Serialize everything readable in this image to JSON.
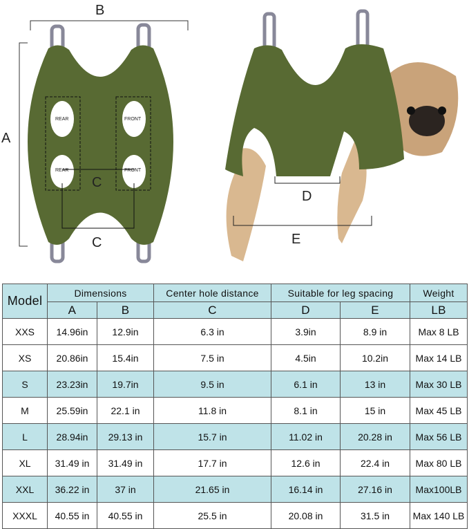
{
  "diagram": {
    "labels": {
      "A": "A",
      "B": "B",
      "C_inner": "C",
      "C_outer": "C",
      "D": "D",
      "E": "E"
    },
    "holes": [
      "REAR",
      "FRONT",
      "REAR",
      "FRONT"
    ],
    "colors": {
      "hammock": "#586a33",
      "dog": "#d9b890",
      "table_header": "#bfe3e8"
    }
  },
  "table": {
    "header": {
      "model": "Model",
      "dimensions": "Dimensions",
      "center": "Center hole distance",
      "leg": "Suitable for leg spacing",
      "weight": "Weight",
      "sub": [
        "A",
        "B",
        "C",
        "D",
        "E",
        "LB"
      ]
    },
    "rows": [
      {
        "model": "XXS",
        "a": "14.96in",
        "b": "12.9in",
        "c": "6.3 in",
        "d": "3.9in",
        "e": "8.9 in",
        "w": "Max 8 LB",
        "highlight": false
      },
      {
        "model": "XS",
        "a": "20.86in",
        "b": "15.4in",
        "c": "7.5 in",
        "d": "4.5in",
        "e": "10.2in",
        "w": "Max 14 LB",
        "highlight": false
      },
      {
        "model": "S",
        "a": "23.23in",
        "b": "19.7in",
        "c": "9.5 in",
        "d": "6.1 in",
        "e": "13 in",
        "w": "Max 30 LB",
        "highlight": true
      },
      {
        "model": "M",
        "a": "25.59in",
        "b": "22.1 in",
        "c": "11.8 in",
        "d": "8.1 in",
        "e": "15 in",
        "w": "Max 45 LB",
        "highlight": false
      },
      {
        "model": "L",
        "a": "28.94in",
        "b": "29.13 in",
        "c": "15.7 in",
        "d": "11.02 in",
        "e": "20.28 in",
        "w": "Max 56 LB",
        "highlight": true
      },
      {
        "model": "XL",
        "a": "31.49 in",
        "b": "31.49 in",
        "c": "17.7 in",
        "d": "12.6 in",
        "e": "22.4 in",
        "w": "Max 80 LB",
        "highlight": false
      },
      {
        "model": "XXL",
        "a": "36.22 in",
        "b": "37 in",
        "c": "21.65 in",
        "d": "16.14 in",
        "e": "27.16 in",
        "w": "Max100LB",
        "highlight": true
      },
      {
        "model": "XXXL",
        "a": "40.55 in",
        "b": "40.55 in",
        "c": "25.5 in",
        "d": "20.08 in",
        "e": "31.5 in",
        "w": "Max 140 LB",
        "highlight": false
      }
    ]
  }
}
